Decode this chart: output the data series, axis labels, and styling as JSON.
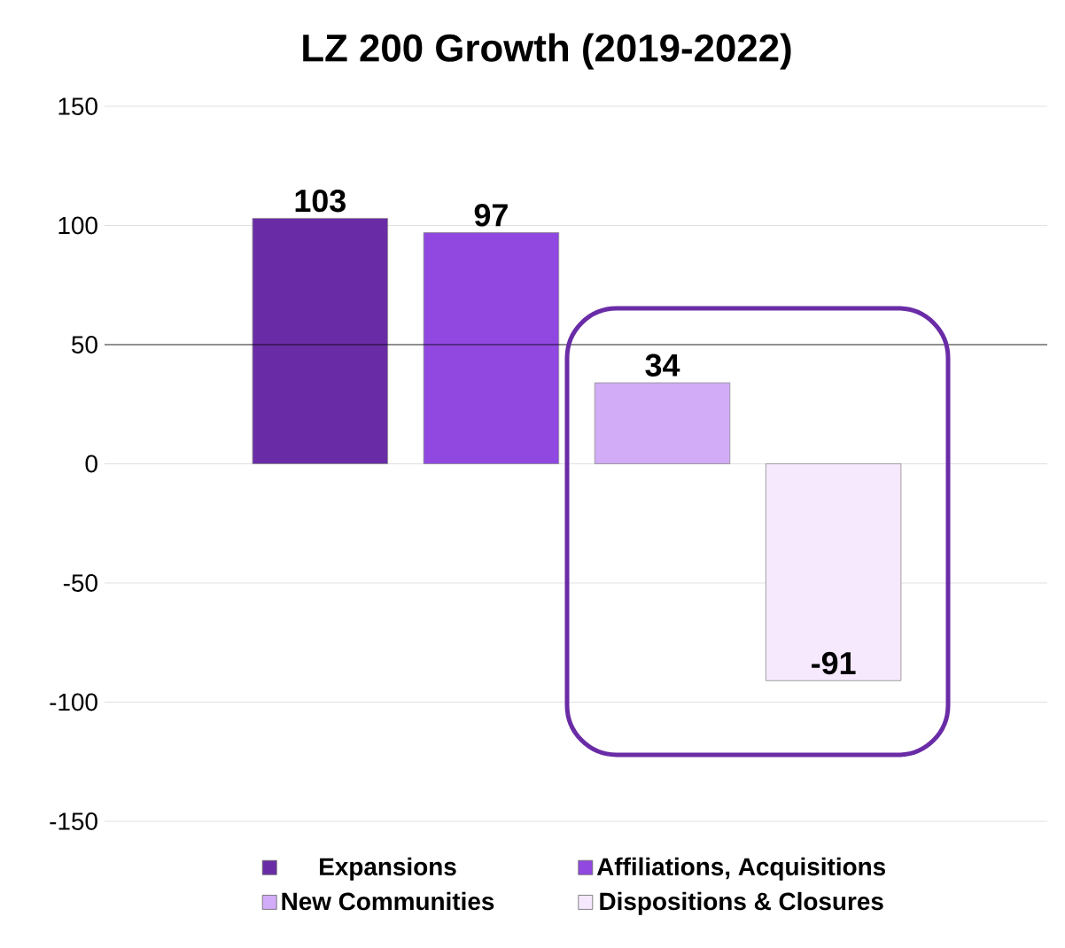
{
  "chart_data": {
    "type": "bar",
    "title": "LZ 200 Growth (2019-2022)",
    "categories": [
      null,
      null,
      null,
      null
    ],
    "series": [
      {
        "name": "Expansions",
        "color": "#6a2ca6",
        "values": [
          103,
          null,
          null,
          null
        ]
      },
      {
        "name": "Affiliations, Acquisitions",
        "color": "#9048e0",
        "values": [
          null,
          97,
          null,
          null
        ]
      },
      {
        "name": "New Communities",
        "color": "#d2acf6",
        "values": [
          null,
          null,
          34,
          null
        ]
      },
      {
        "name": "Dispositions & Closures",
        "color": "#f6e8fd",
        "values": [
          null,
          null,
          null,
          -91
        ]
      }
    ],
    "ylim": [
      -150,
      150
    ],
    "yticks": [
      -150,
      -100,
      -50,
      0,
      50,
      100,
      150
    ],
    "grid": "y",
    "legend": "bottom",
    "data_labels": true,
    "ref_lines": [
      {
        "axis": "y",
        "value": 50,
        "color": "#000000"
      }
    ]
  }
}
